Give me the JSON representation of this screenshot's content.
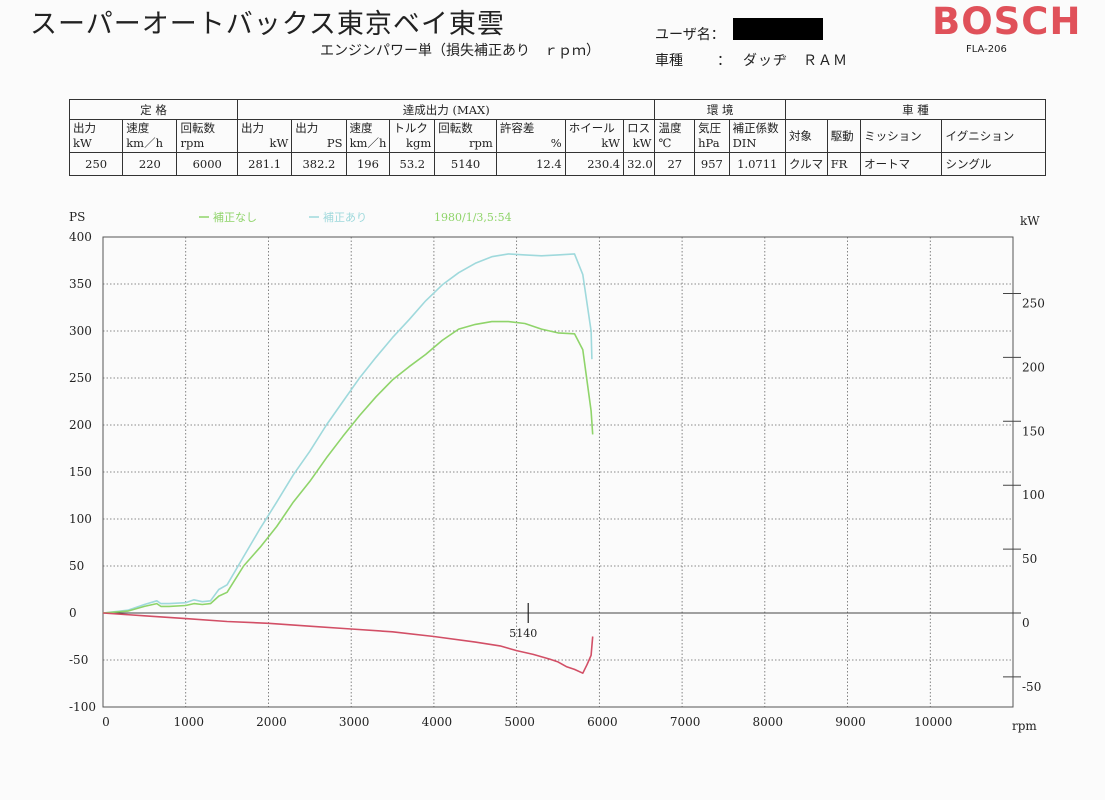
{
  "header": {
    "shop_title": "スーパーオートバックス東京ベイ東雲",
    "subtitle": "エンジンパワー単（損失補正あり　ｒｐｍ）",
    "user_label": "ユーザ名：",
    "vehicle_label": "車種",
    "vehicle_sep": "：",
    "vehicle_value": "ダッヂ　ＲＡＭ",
    "brand": "BOSCH",
    "model_code": "FLA-206"
  },
  "table": {
    "groups": {
      "rated": "定 格",
      "achieved": "達成出力 (MAX)",
      "environment": "環 境",
      "vehicle": "車 種"
    },
    "headers": [
      [
        "出力",
        "kW"
      ],
      [
        "速度",
        "km／h"
      ],
      [
        "回転数",
        "rpm"
      ],
      [
        "出力",
        "kW"
      ],
      [
        "出力",
        "PS"
      ],
      [
        "速度",
        "km／h"
      ],
      [
        "トルク",
        "kgm"
      ],
      [
        "回転数",
        "rpm"
      ],
      [
        "許容差",
        "%"
      ],
      [
        "ホイール",
        "kW"
      ],
      [
        "ロス",
        "kW"
      ],
      [
        "温度",
        "℃"
      ],
      [
        "気圧",
        "hPa"
      ],
      [
        "補正係数",
        "DIN"
      ],
      [
        "対象",
        ""
      ],
      [
        "駆動",
        ""
      ],
      [
        "ミッション",
        ""
      ],
      [
        "イグニション",
        ""
      ]
    ],
    "values": [
      "250",
      "220",
      "6000",
      "281.1",
      "382.2",
      "196",
      "53.2",
      "5140",
      "12.4",
      "230.4",
      "32.0",
      "27",
      "957",
      "1.0711",
      "クルマ",
      "FR",
      "オートマ",
      "シングル"
    ]
  },
  "chart_data": {
    "type": "line",
    "legend": [
      {
        "label": "補正なし",
        "color": "#8fd46a"
      },
      {
        "label": "補正あり",
        "color": "#9fd9dc"
      },
      {
        "label": "1980/1/3,5:54",
        "color": "#8fd46a"
      }
    ],
    "colors": {
      "corrected": "#9fd9dc",
      "uncorrected": "#8fd46a",
      "loss": "#d24f66"
    },
    "ylabel_left": "PS",
    "ylabel_right": "kW",
    "xlabel": "rpm",
    "xlim": [
      0,
      11000
    ],
    "ylim_left": [
      -100,
      400
    ],
    "x_ticks": [
      0,
      1000,
      2000,
      3000,
      4000,
      5000,
      6000,
      7000,
      8000,
      9000,
      10000
    ],
    "y_ticks_left": [
      -100,
      -50,
      0,
      50,
      100,
      150,
      200,
      250,
      300,
      350,
      400
    ],
    "y_ticks_right": [
      -50,
      0,
      50,
      100,
      150,
      200,
      250
    ],
    "grid": true,
    "marker": {
      "x": 5140,
      "label": "5140"
    },
    "series": [
      {
        "x": [
          0,
          300,
          500,
          650,
          700,
          800,
          1000,
          1100,
          1200,
          1300,
          1400,
          1500,
          1700,
          1900,
          2100,
          2300,
          2500,
          2700,
          2900,
          3100,
          3300,
          3500,
          3700,
          3900,
          4100,
          4300,
          4500,
          4700,
          4900,
          5100,
          5300,
          5500,
          5700,
          5800,
          5900,
          5910
        ],
        "values": [
          0,
          3,
          9,
          13,
          10,
          10,
          11,
          14,
          12,
          13,
          25,
          30,
          60,
          90,
          118,
          147,
          172,
          200,
          225,
          250,
          272,
          293,
          312,
          332,
          349,
          362,
          372,
          379,
          382,
          381,
          380,
          381,
          382,
          360,
          300,
          270
        ]
      },
      {
        "x": [
          0,
          300,
          500,
          650,
          700,
          800,
          1000,
          1100,
          1200,
          1300,
          1400,
          1500,
          1700,
          1900,
          2100,
          2300,
          2500,
          2700,
          2900,
          3100,
          3300,
          3500,
          3700,
          3900,
          4100,
          4300,
          4500,
          4700,
          4900,
          5100,
          5300,
          5500,
          5700,
          5800,
          5900,
          5920
        ],
        "values": [
          0,
          2,
          7,
          10,
          7,
          7,
          8,
          10,
          9,
          10,
          18,
          22,
          50,
          70,
          92,
          118,
          140,
          165,
          188,
          210,
          230,
          248,
          262,
          275,
          290,
          302,
          307,
          310,
          310,
          308,
          302,
          298,
          297,
          280,
          215,
          190
        ]
      },
      {
        "x": [
          0,
          500,
          1000,
          1500,
          2000,
          2500,
          3000,
          3500,
          4000,
          4500,
          4800,
          5000,
          5200,
          5400,
          5500,
          5600,
          5700,
          5800,
          5850,
          5900,
          5920
        ],
        "values": [
          0,
          -3,
          -6,
          -9,
          -11,
          -14,
          -17,
          -20,
          -25,
          -31,
          -35,
          -40,
          -44,
          -49,
          -52,
          -57,
          -60,
          -64,
          -55,
          -45,
          -25
        ]
      }
    ]
  }
}
